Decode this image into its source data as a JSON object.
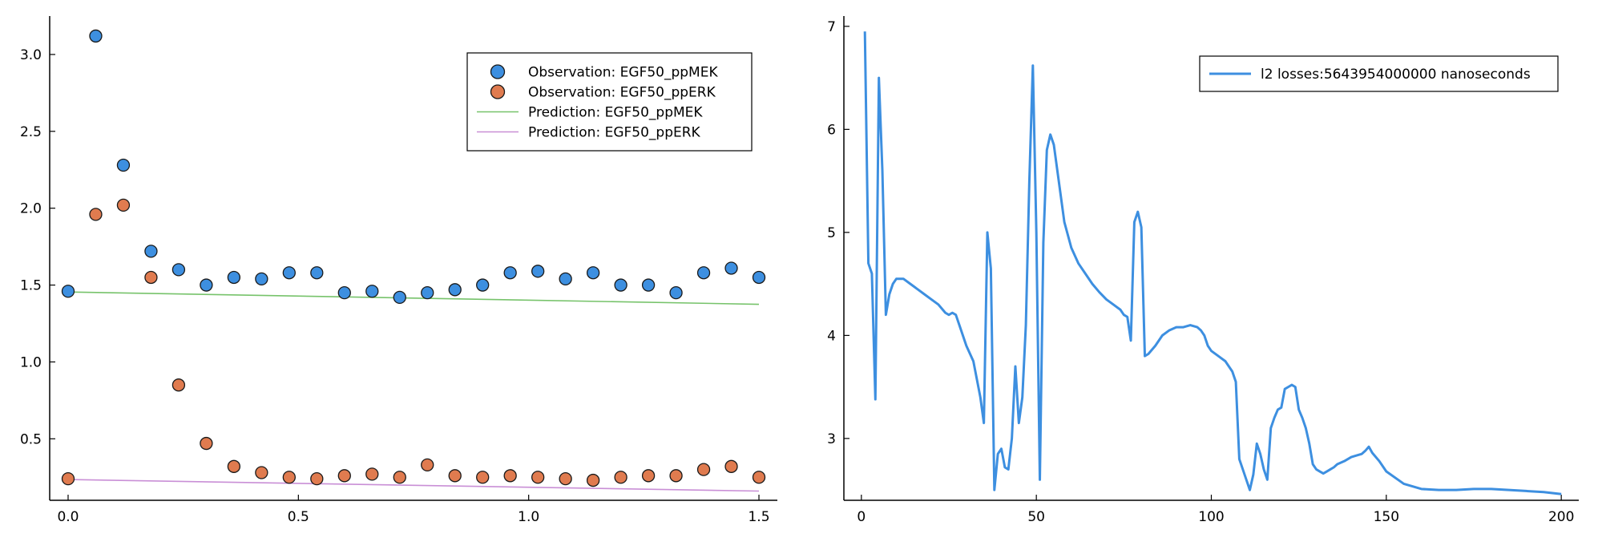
{
  "chart_data": [
    {
      "type": "scatter",
      "title": "",
      "xlabel": "",
      "ylabel": "",
      "xlim": [
        -0.04,
        1.54
      ],
      "ylim": [
        0.1,
        3.25
      ],
      "xticks": [
        0.0,
        0.5,
        1.0,
        1.5
      ],
      "xtick_labels": [
        "0.0",
        "0.5",
        "1.0",
        "1.5"
      ],
      "yticks": [
        0.5,
        1.0,
        1.5,
        2.0,
        2.5,
        3.0
      ],
      "ytick_labels": [
        "0.5",
        "1.0",
        "1.5",
        "2.0",
        "2.5",
        "3.0"
      ],
      "grid": false,
      "legend_position": "top-right",
      "series": [
        {
          "name": "Observation: EGF50_ppMEK",
          "kind": "scatter",
          "color": "#3d8fe0",
          "x": [
            0.0,
            0.06,
            0.12,
            0.18,
            0.24,
            0.3,
            0.36,
            0.42,
            0.48,
            0.54,
            0.6,
            0.66,
            0.72,
            0.78,
            0.84,
            0.9,
            0.96,
            1.02,
            1.08,
            1.14,
            1.2,
            1.26,
            1.32,
            1.38,
            1.44,
            1.5
          ],
          "y": [
            1.46,
            3.12,
            2.28,
            1.72,
            1.6,
            1.5,
            1.55,
            1.54,
            1.58,
            1.58,
            1.45,
            1.46,
            1.42,
            1.45,
            1.47,
            1.5,
            1.58,
            1.59,
            1.54,
            1.58,
            1.5,
            1.5,
            1.45,
            1.58,
            1.61,
            1.55
          ]
        },
        {
          "name": "Observation: EGF50_ppERK",
          "kind": "scatter",
          "color": "#e07b4f",
          "x": [
            0.0,
            0.06,
            0.12,
            0.18,
            0.24,
            0.3,
            0.36,
            0.42,
            0.48,
            0.54,
            0.6,
            0.66,
            0.72,
            0.78,
            0.84,
            0.9,
            0.96,
            1.02,
            1.08,
            1.14,
            1.2,
            1.26,
            1.32,
            1.38,
            1.44,
            1.5
          ],
          "y": [
            0.24,
            1.96,
            2.02,
            1.55,
            0.85,
            0.47,
            0.32,
            0.28,
            0.25,
            0.24,
            0.26,
            0.27,
            0.25,
            0.33,
            0.26,
            0.25,
            0.26,
            0.25,
            0.24,
            0.23,
            0.25,
            0.26,
            0.26,
            0.3,
            0.32,
            0.25
          ]
        },
        {
          "name": "Prediction: EGF50_ppMEK",
          "kind": "line",
          "color": "#77c36b",
          "x": [
            0.0,
            1.5
          ],
          "y": [
            1.455,
            1.375
          ]
        },
        {
          "name": "Prediction: EGF50_ppERK",
          "kind": "line",
          "color": "#c98fd6",
          "x": [
            0.0,
            1.5
          ],
          "y": [
            0.235,
            0.16
          ]
        }
      ]
    },
    {
      "type": "line",
      "title": "",
      "xlabel": "",
      "ylabel": "",
      "xlim": [
        -5,
        205
      ],
      "ylim": [
        2.4,
        7.1
      ],
      "xticks": [
        0,
        50,
        100,
        150,
        200
      ],
      "xtick_labels": [
        "0",
        "50",
        "100",
        "150",
        "200"
      ],
      "yticks": [
        3,
        4,
        5,
        6,
        7
      ],
      "ytick_labels": [
        "3",
        "4",
        "5",
        "6",
        "7"
      ],
      "grid": false,
      "legend_position": "top-right",
      "series": [
        {
          "name": "l2 losses:5643954000000 nanoseconds",
          "kind": "line",
          "color": "#3d8fe0",
          "x": [
            1,
            2,
            3,
            4,
            5,
            6,
            7,
            8,
            9,
            10,
            12,
            14,
            16,
            18,
            20,
            22,
            24,
            25,
            26,
            27,
            28,
            30,
            32,
            34,
            35,
            36,
            37,
            38,
            39,
            40,
            41,
            42,
            43,
            44,
            45,
            46,
            47,
            48,
            49,
            50,
            51,
            52,
            53,
            54,
            55,
            56,
            58,
            60,
            62,
            64,
            66,
            68,
            70,
            72,
            74,
            75,
            76,
            77,
            78,
            79,
            80,
            81,
            82,
            84,
            86,
            88,
            90,
            92,
            94,
            96,
            97,
            98,
            99,
            100,
            102,
            104,
            106,
            107,
            108,
            109,
            110,
            111,
            112,
            113,
            114,
            115,
            116,
            117,
            118,
            119,
            120,
            121,
            122,
            123,
            124,
            125,
            126,
            127,
            128,
            129,
            130,
            131,
            132,
            133,
            134,
            135,
            136,
            138,
            140,
            142,
            143,
            144,
            145,
            146,
            148,
            150,
            155,
            160,
            165,
            170,
            175,
            180,
            185,
            190,
            195,
            200
          ],
          "y": [
            6.95,
            4.7,
            4.6,
            3.38,
            6.5,
            5.6,
            4.2,
            4.4,
            4.5,
            4.55,
            4.55,
            4.5,
            4.45,
            4.4,
            4.35,
            4.3,
            4.22,
            4.2,
            4.22,
            4.2,
            4.1,
            3.9,
            3.75,
            3.4,
            3.15,
            5.0,
            4.65,
            2.5,
            2.85,
            2.9,
            2.72,
            2.7,
            3.0,
            3.7,
            3.15,
            3.4,
            4.1,
            5.5,
            6.62,
            5.0,
            2.6,
            4.9,
            5.8,
            5.95,
            5.85,
            5.6,
            5.1,
            4.85,
            4.7,
            4.6,
            4.5,
            4.42,
            4.35,
            4.3,
            4.25,
            4.2,
            4.18,
            3.95,
            5.1,
            5.2,
            5.05,
            3.8,
            3.82,
            3.9,
            4.0,
            4.05,
            4.08,
            4.08,
            4.1,
            4.08,
            4.05,
            4.0,
            3.9,
            3.85,
            3.8,
            3.75,
            3.65,
            3.55,
            2.8,
            2.7,
            2.6,
            2.5,
            2.65,
            2.95,
            2.85,
            2.7,
            2.6,
            3.1,
            3.2,
            3.28,
            3.3,
            3.48,
            3.5,
            3.52,
            3.5,
            3.28,
            3.2,
            3.1,
            2.95,
            2.75,
            2.7,
            2.68,
            2.66,
            2.68,
            2.7,
            2.72,
            2.75,
            2.78,
            2.82,
            2.84,
            2.85,
            2.88,
            2.92,
            2.86,
            2.78,
            2.68,
            2.56,
            2.51,
            2.5,
            2.5,
            2.51,
            2.51,
            2.5,
            2.49,
            2.48,
            2.46
          ]
        }
      ]
    }
  ]
}
